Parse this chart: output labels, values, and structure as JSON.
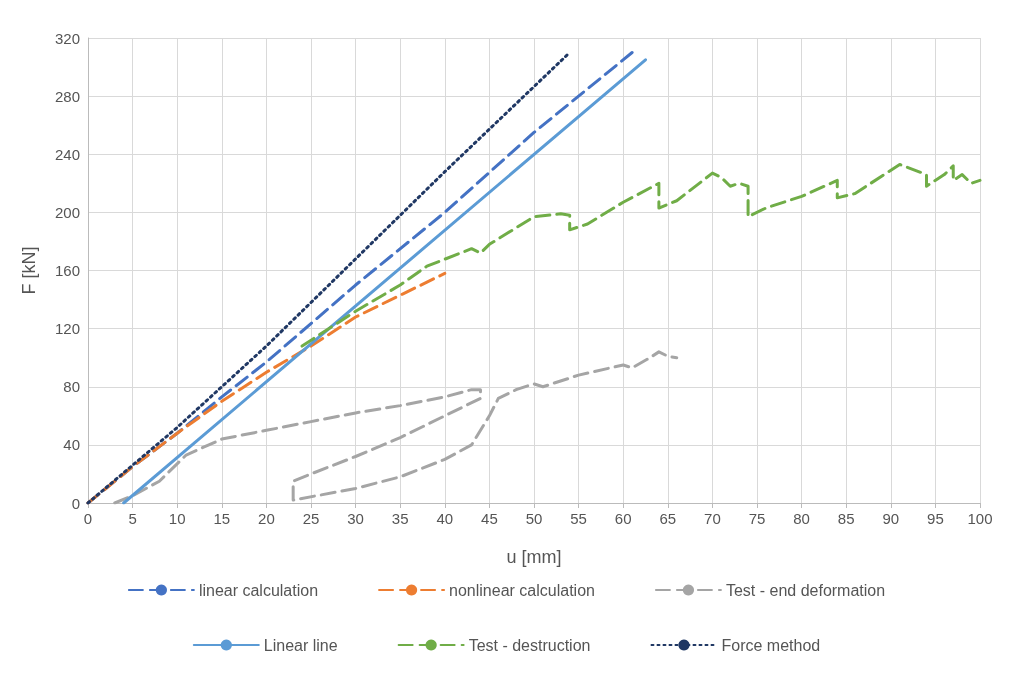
{
  "chart_data": {
    "type": "line",
    "xlabel": "u [mm]",
    "ylabel": "F [kN]",
    "xlim": [
      0,
      100
    ],
    "xticks": [
      0,
      5,
      10,
      15,
      20,
      25,
      30,
      35,
      40,
      45,
      50,
      55,
      60,
      65,
      70,
      75,
      80,
      85,
      90,
      95,
      100
    ],
    "ylim": [
      0,
      320
    ],
    "yticks": [
      0,
      40,
      80,
      120,
      160,
      200,
      240,
      280,
      320
    ],
    "grid": true,
    "legend": "bottom",
    "marker": "none",
    "series": [
      {
        "name": "linear calculation",
        "color": "#4472c4",
        "line_style": "dashed",
        "x": [
          0,
          5,
          10,
          15,
          20,
          30,
          40,
          50,
          61
        ],
        "values": [
          0,
          25,
          48,
          73,
          97,
          150,
          200,
          255,
          310
        ]
      },
      {
        "name": "nonlinear calculation",
        "color": "#ed7d31",
        "line_style": "dashed",
        "x": [
          0,
          2,
          5,
          10,
          15,
          20,
          25,
          30,
          35,
          40
        ],
        "values": [
          0,
          10,
          25,
          48,
          70,
          90,
          108,
          128,
          143,
          158
        ]
      },
      {
        "name": "Test - end deformation",
        "color": "#a5a5a5",
        "line_style": "dashed",
        "x": [
          3,
          5,
          8,
          11,
          15,
          20,
          25,
          30,
          35,
          40,
          43,
          44,
          44,
          40,
          35,
          30,
          25,
          23,
          23,
          23,
          30,
          35,
          40,
          43,
          45,
          46,
          48,
          50,
          51,
          55,
          60,
          61,
          63,
          64,
          65,
          66
        ],
        "values": [
          0,
          5,
          15,
          33,
          44,
          50,
          56,
          62,
          67,
          73,
          78,
          78,
          72,
          60,
          45,
          32,
          20,
          15,
          5,
          2,
          10,
          18,
          30,
          40,
          60,
          72,
          78,
          82,
          80,
          88,
          95,
          93,
          100,
          104,
          101,
          100
        ]
      },
      {
        "name": "Linear line",
        "color": "#5b9bd5",
        "line_style": "solid",
        "x": [
          4,
          62.5
        ],
        "values": [
          0,
          305
        ]
      },
      {
        "name": "Test - destruction",
        "color": "#70ad47",
        "line_style": "dashed",
        "x": [
          24,
          30,
          35,
          38,
          43,
          44,
          45,
          50,
          53,
          54,
          54,
          56,
          60,
          64,
          64,
          66,
          70,
          71,
          72,
          73,
          74,
          74,
          76,
          80,
          84,
          84,
          86,
          91,
          94,
          94,
          96,
          97,
          97,
          98,
          99,
          100
        ],
        "values": [
          108,
          132,
          150,
          163,
          175,
          172,
          178,
          197,
          199,
          198,
          188,
          192,
          207,
          220,
          203,
          208,
          227,
          224,
          218,
          220,
          218,
          197,
          203,
          211,
          222,
          210,
          213,
          233,
          226,
          218,
          226,
          232,
          222,
          226,
          220,
          222
        ]
      },
      {
        "name": "Force method",
        "color": "#203864",
        "line_style": "dotted",
        "x": [
          0,
          5,
          10,
          15,
          20,
          30,
          40,
          54
        ],
        "values": [
          0,
          26,
          52,
          80,
          108,
          168,
          228,
          310
        ]
      }
    ]
  }
}
